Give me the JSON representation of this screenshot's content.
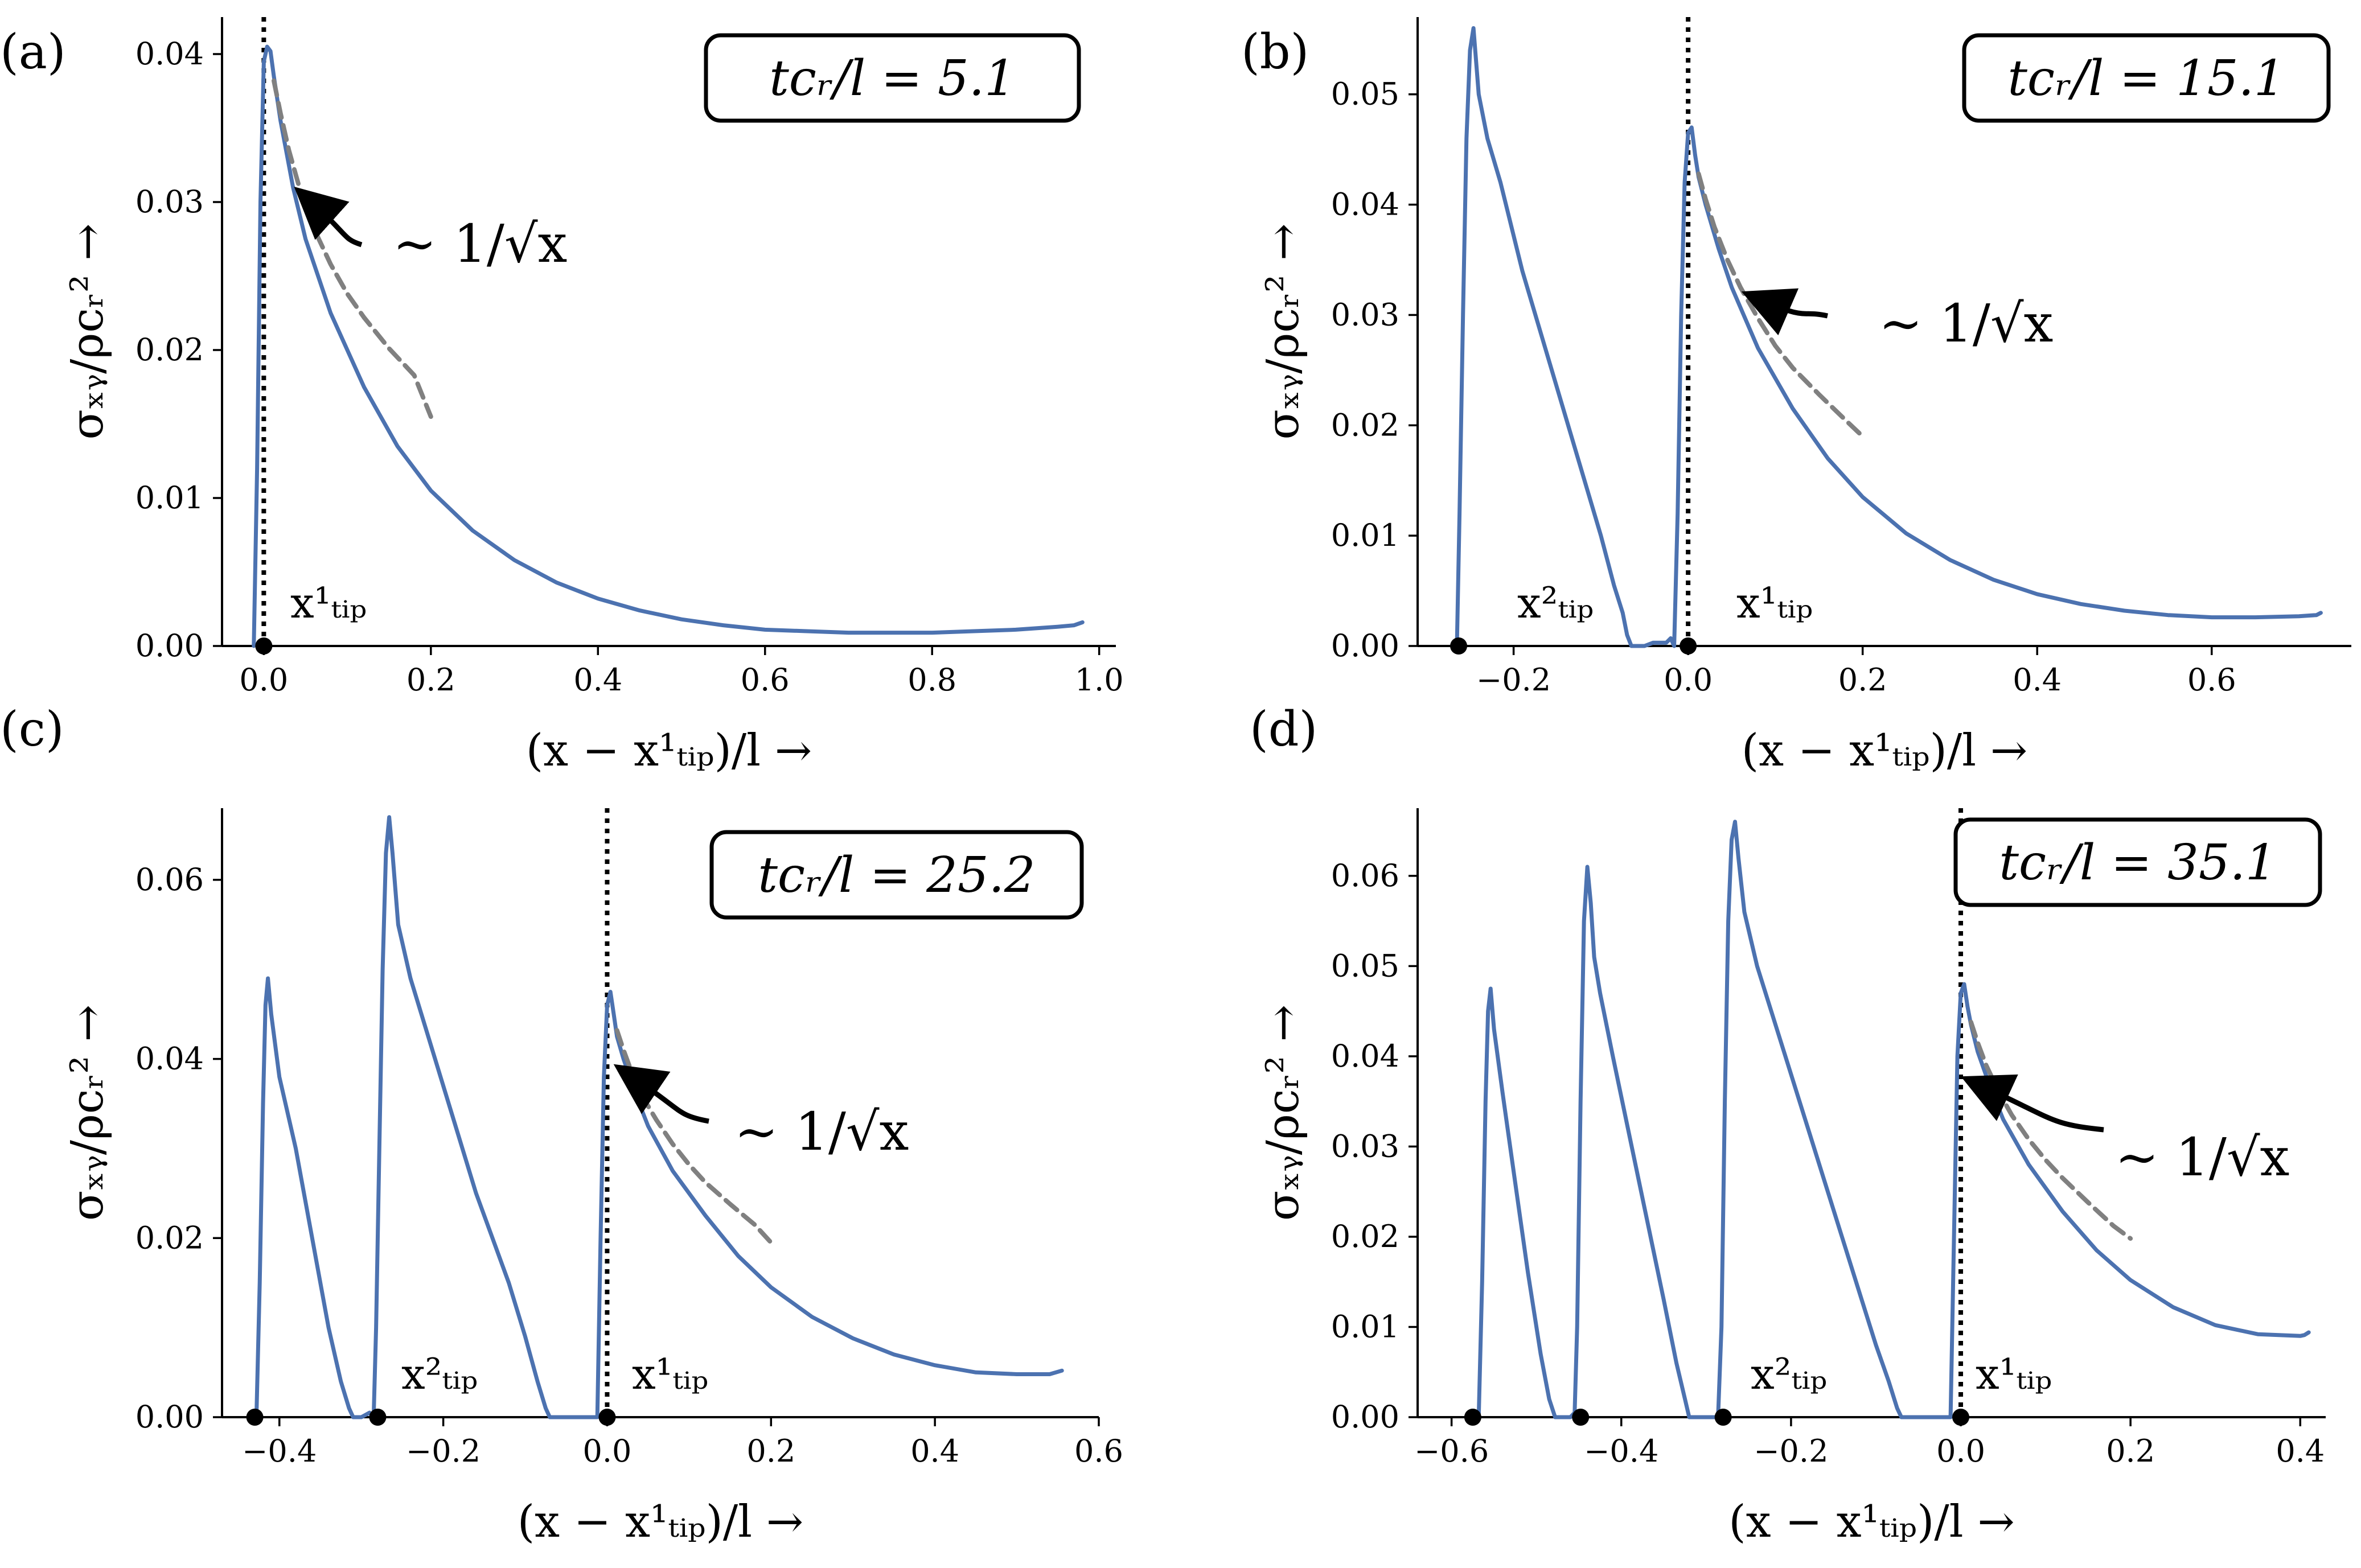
{
  "figure": {
    "panels": [
      {
        "label": "(a)",
        "time_text": "tcᵣ/l = 5.1",
        "annotation": "∼ 1/√x",
        "tips": [
          "x¹ₜᵢₚ"
        ]
      },
      {
        "label": "(b)",
        "time_text": "tcᵣ/l = 15.1",
        "annotation": "∼ 1/√x",
        "tips": [
          "x²ₜᵢₚ",
          "x¹ₜᵢₚ"
        ]
      },
      {
        "label": "(c)",
        "time_text": "tcᵣ/l = 25.2",
        "annotation": "∼ 1/√x",
        "tips": [
          "x²ₜᵢₚ",
          "x¹ₜᵢₚ"
        ]
      },
      {
        "label": "(d)",
        "time_text": "tcᵣ/l = 35.1",
        "annotation": "∼ 1/√x",
        "tips": [
          "x²ₜᵢₚ",
          "x¹ₜᵢₚ"
        ]
      }
    ],
    "xlabel": "(x − x¹ₜᵢₚ)/l →",
    "ylabel": "σₓᵧ/ρcᵣ² →"
  },
  "chart_data": [
    {
      "type": "line",
      "title": "(a) tcr/l = 5.1",
      "xlabel": "(x - x_tip^1)/l",
      "ylabel": "sigma_xy / rho c_r^2",
      "xlim": [
        -0.05,
        1.02
      ],
      "ylim": [
        0,
        0.0425
      ],
      "xticks": [
        0.0,
        0.2,
        0.4,
        0.6,
        0.8,
        1.0
      ],
      "xtick_labels": [
        "0.0",
        "0.2",
        "0.4",
        "0.6",
        "0.8",
        "1.0"
      ],
      "yticks": [
        0.0,
        0.01,
        0.02,
        0.03,
        0.04
      ],
      "ytick_labels": [
        "0.00",
        "0.01",
        "0.02",
        "0.03",
        "0.04"
      ],
      "series": [
        {
          "name": "stress",
          "color": "#4c72b0",
          "x": [
            -0.012,
            -0.008,
            -0.004,
            0.0,
            0.004,
            0.008,
            0.012,
            0.02,
            0.035,
            0.05,
            0.08,
            0.12,
            0.16,
            0.2,
            0.25,
            0.3,
            0.35,
            0.4,
            0.45,
            0.5,
            0.55,
            0.6,
            0.65,
            0.7,
            0.75,
            0.8,
            0.85,
            0.9,
            0.95,
            0.97,
            0.98
          ],
          "y": [
            0.0,
            0.012,
            0.03,
            0.0395,
            0.0405,
            0.0402,
            0.0385,
            0.0355,
            0.031,
            0.0275,
            0.0225,
            0.0175,
            0.0135,
            0.0105,
            0.0078,
            0.0058,
            0.0043,
            0.0032,
            0.0024,
            0.0018,
            0.0014,
            0.0011,
            0.001,
            0.0009,
            0.0009,
            0.0009,
            0.001,
            0.0011,
            0.0013,
            0.0014,
            0.0016
          ]
        },
        {
          "name": "1/sqrt(x) fit",
          "color": "#808080",
          "dashed": true,
          "x": [
            0.012,
            0.02,
            0.03,
            0.045,
            0.06,
            0.08,
            0.1,
            0.12,
            0.15,
            0.18,
            0.2
          ],
          "y": [
            0.0382,
            0.036,
            0.0335,
            0.0305,
            0.0282,
            0.0258,
            0.0238,
            0.0222,
            0.0201,
            0.0183,
            0.0155
          ]
        }
      ],
      "tip_positions": [
        0.0
      ],
      "crack_front_marker": 0.0
    },
    {
      "type": "line",
      "title": "(b) tcr/l = 15.1",
      "xlabel": "(x - x_tip^1)/l",
      "ylabel": "sigma_xy / rho c_r^2",
      "xlim": [
        -0.31,
        0.76
      ],
      "ylim": [
        0,
        0.057
      ],
      "xticks": [
        -0.2,
        0.0,
        0.2,
        0.4,
        0.6
      ],
      "xtick_labels": [
        "−0.2",
        "0.0",
        "0.2",
        "0.4",
        "0.6"
      ],
      "yticks": [
        0.0,
        0.01,
        0.02,
        0.03,
        0.04,
        0.05
      ],
      "ytick_labels": [
        "0.00",
        "0.01",
        "0.02",
        "0.03",
        "0.04",
        "0.05"
      ],
      "series": [
        {
          "name": "stress",
          "color": "#4c72b0",
          "x": [
            -0.265,
            -0.262,
            -0.258,
            -0.254,
            -0.25,
            -0.246,
            -0.24,
            -0.23,
            -0.215,
            -0.19,
            -0.16,
            -0.13,
            -0.1,
            -0.085,
            -0.075,
            -0.07,
            -0.065,
            -0.05,
            -0.04,
            -0.025,
            -0.02,
            -0.016,
            -0.012,
            -0.008,
            -0.004,
            0.0,
            0.004,
            0.008,
            0.012,
            0.02,
            0.035,
            0.05,
            0.08,
            0.12,
            0.16,
            0.2,
            0.25,
            0.3,
            0.35,
            0.4,
            0.45,
            0.5,
            0.55,
            0.6,
            0.65,
            0.7,
            0.72,
            0.725
          ],
          "y": [
            0.0,
            0.012,
            0.03,
            0.046,
            0.054,
            0.056,
            0.05,
            0.046,
            0.042,
            0.034,
            0.026,
            0.018,
            0.01,
            0.0055,
            0.003,
            0.001,
            0.0,
            0.0,
            0.0003,
            0.0003,
            0.0007,
            0.0,
            0.012,
            0.03,
            0.042,
            0.0465,
            0.047,
            0.0445,
            0.0425,
            0.04,
            0.036,
            0.0325,
            0.027,
            0.0215,
            0.017,
            0.0135,
            0.0102,
            0.0078,
            0.006,
            0.0047,
            0.0038,
            0.0032,
            0.0028,
            0.0026,
            0.0026,
            0.0027,
            0.0028,
            0.003
          ]
        },
        {
          "name": "1/sqrt(x) fit",
          "color": "#808080",
          "dashed": true,
          "x": [
            0.012,
            0.02,
            0.03,
            0.045,
            0.06,
            0.08,
            0.1,
            0.12,
            0.15,
            0.18,
            0.2
          ],
          "y": [
            0.0428,
            0.0405,
            0.038,
            0.035,
            0.0325,
            0.0297,
            0.0272,
            0.0252,
            0.0228,
            0.0205,
            0.019
          ]
        }
      ],
      "tip_positions": [
        -0.263,
        0.0
      ],
      "crack_front_marker": 0.0
    },
    {
      "type": "line",
      "title": "(c) tcr/l = 25.2",
      "xlabel": "(x - x_tip^1)/l",
      "ylabel": "sigma_xy / rho c_r^2",
      "xlim": [
        -0.47,
        0.6
      ],
      "ylim": [
        0,
        0.068
      ],
      "xticks": [
        -0.4,
        -0.2,
        0.0,
        0.2,
        0.4,
        0.6
      ],
      "xtick_labels": [
        "−0.4",
        "−0.2",
        "0.0",
        "0.2",
        "0.4",
        "0.6"
      ],
      "yticks": [
        0.0,
        0.02,
        0.04,
        0.06
      ],
      "ytick_labels": [
        "0.00",
        "0.02",
        "0.04",
        "0.06"
      ],
      "series": [
        {
          "name": "stress",
          "color": "#4c72b0",
          "x": [
            -0.43,
            -0.428,
            -0.424,
            -0.42,
            -0.417,
            -0.414,
            -0.41,
            -0.4,
            -0.38,
            -0.36,
            -0.34,
            -0.325,
            -0.315,
            -0.31,
            -0.3,
            -0.29,
            -0.285,
            -0.282,
            -0.278,
            -0.274,
            -0.27,
            -0.266,
            -0.262,
            -0.255,
            -0.24,
            -0.22,
            -0.2,
            -0.18,
            -0.16,
            -0.14,
            -0.12,
            -0.1,
            -0.085,
            -0.075,
            -0.07,
            -0.06,
            -0.05,
            -0.04,
            -0.02,
            -0.015,
            -0.012,
            -0.008,
            -0.004,
            0.0,
            0.004,
            0.008,
            0.012,
            0.02,
            0.035,
            0.05,
            0.08,
            0.12,
            0.16,
            0.2,
            0.25,
            0.3,
            0.35,
            0.4,
            0.45,
            0.5,
            0.54,
            0.555
          ],
          "y": [
            0.0,
            0.0,
            0.015,
            0.035,
            0.046,
            0.049,
            0.045,
            0.038,
            0.03,
            0.02,
            0.01,
            0.004,
            0.001,
            0.0,
            0.0,
            0.0005,
            0.0,
            0.01,
            0.03,
            0.05,
            0.063,
            0.067,
            0.063,
            0.055,
            0.049,
            0.043,
            0.037,
            0.031,
            0.025,
            0.02,
            0.015,
            0.009,
            0.004,
            0.001,
            0.0,
            0.0,
            0.0,
            0.0,
            0.0,
            0.0,
            0.0,
            0.02,
            0.038,
            0.046,
            0.0475,
            0.045,
            0.0425,
            0.04,
            0.036,
            0.0325,
            0.0275,
            0.0225,
            0.018,
            0.0145,
            0.0112,
            0.0088,
            0.007,
            0.0058,
            0.005,
            0.0048,
            0.0048,
            0.0052
          ]
        },
        {
          "name": "1/sqrt(x) fit",
          "color": "#808080",
          "dashed": true,
          "x": [
            0.012,
            0.02,
            0.03,
            0.045,
            0.06,
            0.08,
            0.1,
            0.12,
            0.15,
            0.18,
            0.2
          ],
          "y": [
            0.0432,
            0.041,
            0.0385,
            0.0355,
            0.0332,
            0.0305,
            0.0282,
            0.0262,
            0.0238,
            0.0215,
            0.0195
          ]
        }
      ],
      "tip_positions": [
        -0.43,
        -0.28,
        0.0
      ],
      "crack_front_marker": 0.0
    },
    {
      "type": "line",
      "title": "(d) tcr/l = 35.1",
      "xlabel": "(x - x_tip^1)/l",
      "ylabel": "sigma_xy / rho c_r^2",
      "xlim": [
        -0.64,
        0.43
      ],
      "ylim": [
        0,
        0.0675
      ],
      "xticks": [
        -0.6,
        -0.4,
        -0.2,
        0.0,
        0.2,
        0.4
      ],
      "xtick_labels": [
        "−0.6",
        "−0.4",
        "−0.2",
        "0.0",
        "0.2",
        "0.4"
      ],
      "yticks": [
        0.0,
        0.01,
        0.02,
        0.03,
        0.04,
        0.05,
        0.06
      ],
      "ytick_labels": [
        "0.00",
        "0.01",
        "0.02",
        "0.03",
        "0.04",
        "0.05",
        "0.06"
      ],
      "series": [
        {
          "name": "stress",
          "color": "#4c72b0",
          "x": [
            -0.57,
            -0.568,
            -0.564,
            -0.56,
            -0.557,
            -0.554,
            -0.55,
            -0.54,
            -0.525,
            -0.51,
            -0.495,
            -0.485,
            -0.478,
            -0.47,
            -0.46,
            -0.455,
            -0.452,
            -0.448,
            -0.444,
            -0.44,
            -0.436,
            -0.432,
            -0.425,
            -0.41,
            -0.39,
            -0.37,
            -0.35,
            -0.335,
            -0.325,
            -0.32,
            -0.31,
            -0.3,
            -0.286,
            -0.282,
            -0.278,
            -0.274,
            -0.27,
            -0.266,
            -0.262,
            -0.255,
            -0.24,
            -0.22,
            -0.2,
            -0.18,
            -0.16,
            -0.14,
            -0.12,
            -0.1,
            -0.085,
            -0.075,
            -0.07,
            -0.06,
            -0.05,
            -0.04,
            -0.025,
            -0.02,
            -0.016,
            -0.012,
            -0.008,
            -0.004,
            0.0,
            0.004,
            0.008,
            0.012,
            0.02,
            0.035,
            0.05,
            0.08,
            0.12,
            0.16,
            0.2,
            0.25,
            0.3,
            0.35,
            0.4,
            0.405,
            0.41
          ],
          "y": [
            0.0,
            0.0,
            0.015,
            0.035,
            0.045,
            0.0475,
            0.043,
            0.036,
            0.026,
            0.016,
            0.007,
            0.002,
            0.0,
            0.0,
            0.0,
            0.0005,
            0.01,
            0.035,
            0.055,
            0.061,
            0.057,
            0.051,
            0.047,
            0.04,
            0.031,
            0.022,
            0.013,
            0.006,
            0.002,
            0.0,
            0.0,
            0.0,
            0.0,
            0.01,
            0.035,
            0.055,
            0.064,
            0.066,
            0.062,
            0.056,
            0.05,
            0.044,
            0.038,
            0.032,
            0.026,
            0.02,
            0.014,
            0.008,
            0.004,
            0.001,
            0.0,
            0.0,
            0.0,
            0.0,
            0.0,
            0.0,
            0.0,
            0.0,
            0.02,
            0.04,
            0.047,
            0.048,
            0.0455,
            0.0435,
            0.0405,
            0.0365,
            0.033,
            0.028,
            0.0228,
            0.0185,
            0.0152,
            0.0122,
            0.0102,
            0.0092,
            0.009,
            0.0091,
            0.0094
          ]
        },
        {
          "name": "1/sqrt(x) fit",
          "color": "#808080",
          "dashed": true,
          "x": [
            0.012,
            0.02,
            0.03,
            0.045,
            0.06,
            0.08,
            0.1,
            0.12,
            0.15,
            0.18,
            0.2
          ],
          "y": [
            0.0438,
            0.0415,
            0.039,
            0.036,
            0.0335,
            0.0308,
            0.0285,
            0.0265,
            0.0238,
            0.0212,
            0.0198
          ]
        }
      ],
      "tip_positions": [
        -0.575,
        -0.448,
        -0.28,
        0.0
      ],
      "crack_front_marker": 0.0
    }
  ]
}
